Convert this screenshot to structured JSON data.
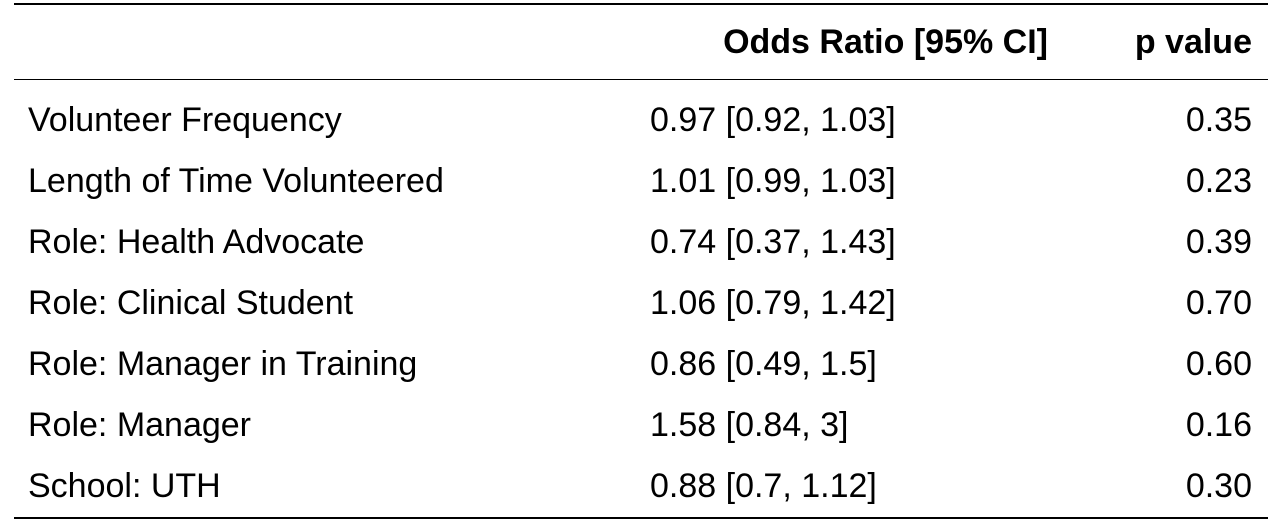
{
  "table": {
    "headers": {
      "variable": "",
      "odds_ratio": "Odds Ratio [95% CI]",
      "p_value": "p value"
    },
    "rows": [
      {
        "variable": "Volunteer Frequency",
        "odds_ratio": "0.97 [0.92, 1.03]",
        "p_value": "0.35"
      },
      {
        "variable": "Length of Time Volunteered",
        "odds_ratio": "1.01 [0.99, 1.03]",
        "p_value": "0.23"
      },
      {
        "variable": "Role: Health Advocate",
        "odds_ratio": "0.74 [0.37, 1.43]",
        "p_value": "0.39"
      },
      {
        "variable": "Role: Clinical Student",
        "odds_ratio": "1.06 [0.79, 1.42]",
        "p_value": "0.70"
      },
      {
        "variable": "Role: Manager in Training",
        "odds_ratio": "0.86 [0.49, 1.5]",
        "p_value": "0.60"
      },
      {
        "variable": "Role: Manager",
        "odds_ratio": "1.58 [0.84, 3]",
        "p_value": "0.16"
      },
      {
        "variable": "School: UTH",
        "odds_ratio": "0.88 [0.7, 1.12]",
        "p_value": "0.30"
      }
    ]
  }
}
